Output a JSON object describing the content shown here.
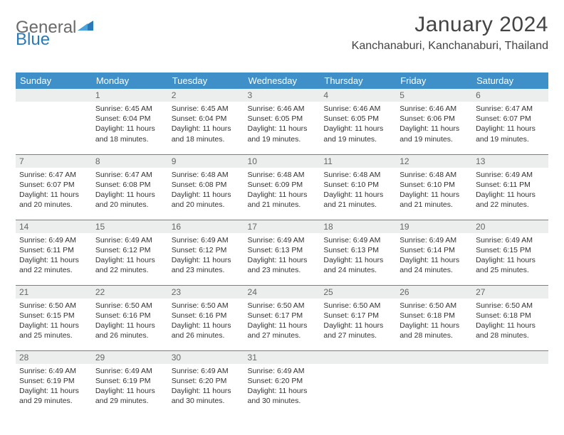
{
  "logo": {
    "general": "General",
    "blue": "Blue"
  },
  "title": "January 2024",
  "location": "Kanchanaburi, Kanchanaburi, Thailand",
  "colors": {
    "header_bg": "#3f8fc9",
    "header_fg": "#ffffff",
    "daynum_bg": "#eceded",
    "daynum_fg": "#666666",
    "divider": "#3f8fc9",
    "text": "#333333",
    "logo_general": "#6a6a6a",
    "logo_blue": "#2a7ab8"
  },
  "weekdays": [
    "Sunday",
    "Monday",
    "Tuesday",
    "Wednesday",
    "Thursday",
    "Friday",
    "Saturday"
  ],
  "weeks": [
    [
      {
        "n": "",
        "sr": "",
        "ss": "",
        "dl": ""
      },
      {
        "n": "1",
        "sr": "Sunrise: 6:45 AM",
        "ss": "Sunset: 6:04 PM",
        "dl": "Daylight: 11 hours and 18 minutes."
      },
      {
        "n": "2",
        "sr": "Sunrise: 6:45 AM",
        "ss": "Sunset: 6:04 PM",
        "dl": "Daylight: 11 hours and 18 minutes."
      },
      {
        "n": "3",
        "sr": "Sunrise: 6:46 AM",
        "ss": "Sunset: 6:05 PM",
        "dl": "Daylight: 11 hours and 19 minutes."
      },
      {
        "n": "4",
        "sr": "Sunrise: 6:46 AM",
        "ss": "Sunset: 6:05 PM",
        "dl": "Daylight: 11 hours and 19 minutes."
      },
      {
        "n": "5",
        "sr": "Sunrise: 6:46 AM",
        "ss": "Sunset: 6:06 PM",
        "dl": "Daylight: 11 hours and 19 minutes."
      },
      {
        "n": "6",
        "sr": "Sunrise: 6:47 AM",
        "ss": "Sunset: 6:07 PM",
        "dl": "Daylight: 11 hours and 19 minutes."
      }
    ],
    [
      {
        "n": "7",
        "sr": "Sunrise: 6:47 AM",
        "ss": "Sunset: 6:07 PM",
        "dl": "Daylight: 11 hours and 20 minutes."
      },
      {
        "n": "8",
        "sr": "Sunrise: 6:47 AM",
        "ss": "Sunset: 6:08 PM",
        "dl": "Daylight: 11 hours and 20 minutes."
      },
      {
        "n": "9",
        "sr": "Sunrise: 6:48 AM",
        "ss": "Sunset: 6:08 PM",
        "dl": "Daylight: 11 hours and 20 minutes."
      },
      {
        "n": "10",
        "sr": "Sunrise: 6:48 AM",
        "ss": "Sunset: 6:09 PM",
        "dl": "Daylight: 11 hours and 21 minutes."
      },
      {
        "n": "11",
        "sr": "Sunrise: 6:48 AM",
        "ss": "Sunset: 6:10 PM",
        "dl": "Daylight: 11 hours and 21 minutes."
      },
      {
        "n": "12",
        "sr": "Sunrise: 6:48 AM",
        "ss": "Sunset: 6:10 PM",
        "dl": "Daylight: 11 hours and 21 minutes."
      },
      {
        "n": "13",
        "sr": "Sunrise: 6:49 AM",
        "ss": "Sunset: 6:11 PM",
        "dl": "Daylight: 11 hours and 22 minutes."
      }
    ],
    [
      {
        "n": "14",
        "sr": "Sunrise: 6:49 AM",
        "ss": "Sunset: 6:11 PM",
        "dl": "Daylight: 11 hours and 22 minutes."
      },
      {
        "n": "15",
        "sr": "Sunrise: 6:49 AM",
        "ss": "Sunset: 6:12 PM",
        "dl": "Daylight: 11 hours and 22 minutes."
      },
      {
        "n": "16",
        "sr": "Sunrise: 6:49 AM",
        "ss": "Sunset: 6:12 PM",
        "dl": "Daylight: 11 hours and 23 minutes."
      },
      {
        "n": "17",
        "sr": "Sunrise: 6:49 AM",
        "ss": "Sunset: 6:13 PM",
        "dl": "Daylight: 11 hours and 23 minutes."
      },
      {
        "n": "18",
        "sr": "Sunrise: 6:49 AM",
        "ss": "Sunset: 6:13 PM",
        "dl": "Daylight: 11 hours and 24 minutes."
      },
      {
        "n": "19",
        "sr": "Sunrise: 6:49 AM",
        "ss": "Sunset: 6:14 PM",
        "dl": "Daylight: 11 hours and 24 minutes."
      },
      {
        "n": "20",
        "sr": "Sunrise: 6:49 AM",
        "ss": "Sunset: 6:15 PM",
        "dl": "Daylight: 11 hours and 25 minutes."
      }
    ],
    [
      {
        "n": "21",
        "sr": "Sunrise: 6:50 AM",
        "ss": "Sunset: 6:15 PM",
        "dl": "Daylight: 11 hours and 25 minutes."
      },
      {
        "n": "22",
        "sr": "Sunrise: 6:50 AM",
        "ss": "Sunset: 6:16 PM",
        "dl": "Daylight: 11 hours and 26 minutes."
      },
      {
        "n": "23",
        "sr": "Sunrise: 6:50 AM",
        "ss": "Sunset: 6:16 PM",
        "dl": "Daylight: 11 hours and 26 minutes."
      },
      {
        "n": "24",
        "sr": "Sunrise: 6:50 AM",
        "ss": "Sunset: 6:17 PM",
        "dl": "Daylight: 11 hours and 27 minutes."
      },
      {
        "n": "25",
        "sr": "Sunrise: 6:50 AM",
        "ss": "Sunset: 6:17 PM",
        "dl": "Daylight: 11 hours and 27 minutes."
      },
      {
        "n": "26",
        "sr": "Sunrise: 6:50 AM",
        "ss": "Sunset: 6:18 PM",
        "dl": "Daylight: 11 hours and 28 minutes."
      },
      {
        "n": "27",
        "sr": "Sunrise: 6:50 AM",
        "ss": "Sunset: 6:18 PM",
        "dl": "Daylight: 11 hours and 28 minutes."
      }
    ],
    [
      {
        "n": "28",
        "sr": "Sunrise: 6:49 AM",
        "ss": "Sunset: 6:19 PM",
        "dl": "Daylight: 11 hours and 29 minutes."
      },
      {
        "n": "29",
        "sr": "Sunrise: 6:49 AM",
        "ss": "Sunset: 6:19 PM",
        "dl": "Daylight: 11 hours and 29 minutes."
      },
      {
        "n": "30",
        "sr": "Sunrise: 6:49 AM",
        "ss": "Sunset: 6:20 PM",
        "dl": "Daylight: 11 hours and 30 minutes."
      },
      {
        "n": "31",
        "sr": "Sunrise: 6:49 AM",
        "ss": "Sunset: 6:20 PM",
        "dl": "Daylight: 11 hours and 30 minutes."
      },
      {
        "n": "",
        "sr": "",
        "ss": "",
        "dl": ""
      },
      {
        "n": "",
        "sr": "",
        "ss": "",
        "dl": ""
      },
      {
        "n": "",
        "sr": "",
        "ss": "",
        "dl": ""
      }
    ]
  ]
}
